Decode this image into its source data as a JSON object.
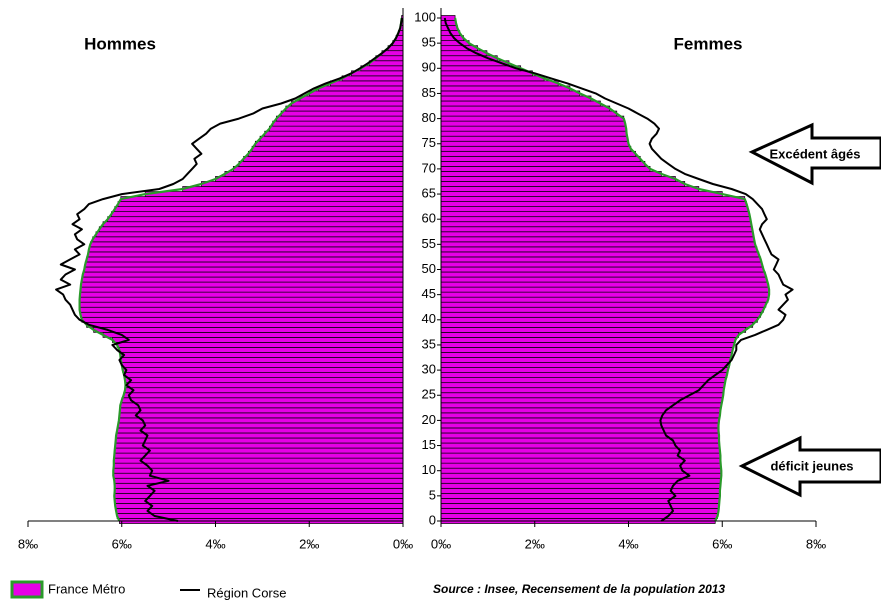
{
  "chart_data": {
    "type": "population_pyramid",
    "left_title": "Hommes",
    "right_title": "Femmes",
    "annotations": [
      "Excédent âgés",
      "déficit jeunes"
    ],
    "source": "Source : Insee, Recensement de la population 2013",
    "ages": [
      0,
      1,
      2,
      3,
      4,
      5,
      6,
      7,
      8,
      9,
      10,
      11,
      12,
      13,
      14,
      15,
      16,
      17,
      18,
      19,
      20,
      21,
      22,
      23,
      24,
      25,
      26,
      27,
      28,
      29,
      30,
      31,
      32,
      33,
      34,
      35,
      36,
      37,
      38,
      39,
      40,
      41,
      42,
      43,
      44,
      45,
      46,
      47,
      48,
      49,
      50,
      51,
      52,
      53,
      54,
      55,
      56,
      57,
      58,
      59,
      60,
      61,
      62,
      63,
      64,
      65,
      66,
      67,
      68,
      69,
      70,
      71,
      72,
      73,
      74,
      75,
      76,
      77,
      78,
      79,
      80,
      81,
      82,
      83,
      84,
      85,
      86,
      87,
      88,
      89,
      90,
      91,
      92,
      93,
      94,
      95,
      96,
      97,
      98,
      99,
      100
    ],
    "ylim": [
      0,
      100
    ],
    "yticks": [
      0,
      5,
      10,
      15,
      20,
      25,
      30,
      35,
      40,
      45,
      50,
      55,
      60,
      65,
      70,
      75,
      80,
      85,
      90,
      95,
      100
    ],
    "xlim": [
      0,
      8
    ],
    "xticks": [
      {
        "value": 8,
        "label": "8‰"
      },
      {
        "value": 6,
        "label": "6‰"
      },
      {
        "value": 4,
        "label": "4‰"
      },
      {
        "value": 2,
        "label": "2‰"
      },
      {
        "value": 0,
        "label": "0‰"
      }
    ],
    "series": [
      {
        "name": "France Métro",
        "color": "#e600e6",
        "edge_color": "#2a9a2a",
        "men": [
          6.05,
          6.1,
          6.12,
          6.14,
          6.15,
          6.16,
          6.15,
          6.15,
          6.16,
          6.18,
          6.18,
          6.17,
          6.17,
          6.16,
          6.15,
          6.14,
          6.13,
          6.12,
          6.1,
          6.08,
          6.06,
          6.05,
          6.04,
          6.03,
          6.0,
          5.96,
          5.93,
          5.92,
          5.93,
          5.95,
          5.98,
          6.0,
          6.02,
          6.03,
          6.05,
          6.1,
          6.2,
          6.4,
          6.6,
          6.75,
          6.85,
          6.88,
          6.9,
          6.9,
          6.9,
          6.89,
          6.88,
          6.87,
          6.85,
          6.83,
          6.8,
          6.78,
          6.75,
          6.72,
          6.7,
          6.67,
          6.62,
          6.55,
          6.48,
          6.4,
          6.3,
          6.22,
          6.15,
          6.08,
          6.02,
          5.5,
          4.7,
          4.3,
          4.0,
          3.8,
          3.62,
          3.5,
          3.4,
          3.3,
          3.22,
          3.15,
          3.05,
          2.95,
          2.85,
          2.78,
          2.7,
          2.6,
          2.5,
          2.38,
          2.2,
          2.0,
          1.8,
          1.55,
          1.3,
          1.1,
          0.9,
          0.72,
          0.58,
          0.45,
          0.32,
          0.22,
          0.15,
          0.1,
          0.06,
          0.04,
          0.03
        ],
        "women": [
          5.85,
          5.9,
          5.92,
          5.93,
          5.94,
          5.95,
          5.95,
          5.96,
          5.97,
          5.98,
          5.98,
          5.97,
          5.96,
          5.96,
          5.95,
          5.94,
          5.93,
          5.93,
          5.92,
          5.92,
          5.93,
          5.95,
          5.96,
          5.98,
          6.0,
          6.02,
          6.03,
          6.05,
          6.07,
          6.1,
          6.12,
          6.15,
          6.17,
          6.2,
          6.22,
          6.25,
          6.28,
          6.35,
          6.5,
          6.65,
          6.75,
          6.82,
          6.88,
          6.93,
          6.98,
          7.0,
          7.0,
          6.98,
          6.95,
          6.92,
          6.88,
          6.85,
          6.82,
          6.78,
          6.74,
          6.7,
          6.68,
          6.66,
          6.64,
          6.62,
          6.6,
          6.58,
          6.55,
          6.52,
          6.48,
          6.0,
          5.5,
          5.2,
          5.0,
          4.7,
          4.46,
          4.35,
          4.25,
          4.15,
          4.05,
          4.0,
          3.98,
          3.96,
          3.95,
          3.93,
          3.9,
          3.75,
          3.6,
          3.4,
          3.2,
          2.96,
          2.75,
          2.5,
          2.2,
          1.95,
          1.7,
          1.45,
          1.2,
          0.98,
          0.78,
          0.6,
          0.48,
          0.4,
          0.35,
          0.32,
          0.3
        ]
      },
      {
        "name": "Région Corse",
        "color": "#000000",
        "men": [
          4.8,
          5.3,
          5.45,
          5.35,
          5.5,
          5.4,
          5.3,
          5.45,
          5.0,
          5.4,
          5.35,
          5.45,
          5.6,
          5.5,
          5.4,
          5.55,
          5.5,
          5.45,
          5.6,
          5.5,
          5.55,
          5.7,
          5.6,
          5.65,
          5.8,
          5.85,
          5.75,
          5.9,
          5.8,
          5.95,
          5.9,
          6.0,
          6.05,
          5.95,
          6.1,
          6.2,
          5.85,
          6.0,
          6.3,
          6.7,
          6.9,
          7.0,
          7.05,
          7.1,
          7.2,
          7.25,
          7.4,
          7.1,
          7.3,
          7.2,
          7.0,
          7.3,
          7.1,
          6.9,
          7.0,
          6.8,
          6.95,
          7.0,
          6.85,
          7.05,
          6.9,
          6.95,
          6.8,
          6.7,
          6.4,
          6.0,
          5.2,
          4.9,
          4.7,
          4.6,
          4.5,
          4.4,
          4.45,
          4.3,
          4.4,
          4.5,
          4.35,
          4.2,
          4.1,
          3.9,
          3.5,
          3.2,
          3.0,
          2.6,
          2.3,
          2.1,
          1.9,
          1.65,
          1.35,
          1.1,
          0.92,
          0.75,
          0.6,
          0.45,
          0.32,
          0.22,
          0.15,
          0.1,
          0.06,
          0.04,
          0.02
        ],
        "women": [
          4.7,
          4.85,
          4.95,
          4.9,
          4.85,
          5.0,
          4.9,
          4.95,
          5.05,
          5.3,
          5.15,
          5.1,
          5.2,
          5.05,
          5.1,
          5.0,
          4.95,
          4.8,
          4.75,
          4.7,
          4.68,
          4.72,
          4.8,
          4.95,
          5.1,
          5.3,
          5.5,
          5.6,
          5.7,
          5.85,
          6.0,
          6.1,
          6.2,
          6.25,
          6.3,
          6.3,
          6.4,
          6.7,
          6.95,
          7.2,
          7.3,
          7.35,
          7.2,
          7.3,
          7.4,
          7.35,
          7.5,
          7.3,
          7.25,
          7.2,
          7.1,
          7.15,
          7.2,
          7.05,
          7.0,
          6.95,
          6.9,
          6.85,
          6.8,
          6.85,
          6.95,
          6.9,
          6.85,
          6.75,
          6.65,
          6.5,
          6.2,
          5.8,
          5.5,
          5.2,
          5.0,
          4.85,
          4.7,
          4.6,
          4.5,
          4.45,
          4.5,
          4.6,
          4.65,
          4.55,
          4.4,
          4.2,
          4.0,
          3.75,
          3.5,
          3.3,
          3.0,
          2.7,
          2.35,
          2.0,
          1.6,
          1.3,
          1.0,
          0.75,
          0.55,
          0.4,
          0.28,
          0.2,
          0.15,
          0.1,
          0.08
        ]
      }
    ]
  }
}
